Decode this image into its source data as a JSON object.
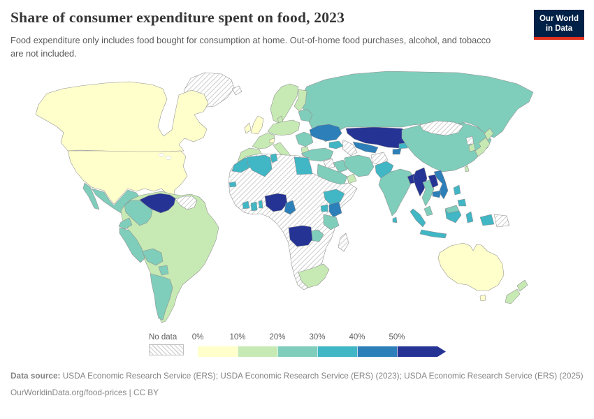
{
  "header": {
    "title": "Share of consumer expenditure spent on food, 2023",
    "subtitle": "Food expenditure only includes food bought for consumption at home. Out-of-home food purchases, alcohol, and tobacco are not included.",
    "logo": {
      "line1": "Our World",
      "line2": "in Data",
      "bg_color": "#002147",
      "accent_color": "#e0301e"
    }
  },
  "legend": {
    "no_data_label": "No data",
    "tick_labels": [
      "0%",
      "10%",
      "20%",
      "30%",
      "40%",
      "50%"
    ]
  },
  "chart_data": {
    "type": "choropleth_map",
    "title": "Share of consumer expenditure spent on food, 2023",
    "unit": "% of consumer expenditure",
    "year": "2023",
    "legend_position": "bottom",
    "no_data": {
      "label": "No data",
      "style": "diagonal-hatch"
    },
    "legend_bins": [
      {
        "label": "0%",
        "range": "0-10%",
        "color": "#ffffcc"
      },
      {
        "label": "10%",
        "range": "10-20%",
        "color": "#c7e9b4"
      },
      {
        "label": "20%",
        "range": "20-30%",
        "color": "#7fcdbb"
      },
      {
        "label": "30%",
        "range": "30-40%",
        "color": "#41b6c4"
      },
      {
        "label": "40%",
        "range": "40-50%",
        "color": "#2c7fb8"
      },
      {
        "label": "50%",
        "range": "50%+",
        "color": "#253494"
      }
    ],
    "regions": {
      "greenland": "no-data",
      "iceland": "no-data",
      "canada": "0-10%",
      "united-states": "0-10%",
      "mexico": "20-30%",
      "guatemala": "40-50%",
      "honduras": "30-40%",
      "nicaragua": "30-40%",
      "costa-rica-panama": "10-20%",
      "cuba": "no-data",
      "hispaniola": "30-40%",
      "venezuela": "50%+",
      "colombia": "20-30%",
      "guyanas": "no-data",
      "brazil": "10-20%",
      "ecuador": "20-30%",
      "peru": "20-30%",
      "bolivia": "20-30%",
      "paraguay": "20-30%",
      "argentina": "20-30%",
      "russia": "20-30%",
      "scandinavia": "10-20%",
      "finland": "10-20%",
      "denmark": "10-20%",
      "iberia": "10-20%",
      "france": "10-20%",
      "central-europe": "10-20%",
      "uk": "0-10%",
      "ireland": "0-10%",
      "balkans": "20-30%",
      "italy": "10-20%",
      "greece": "10-20%",
      "switzerland": "0-10%",
      "baltics-belarus": "20-30%",
      "ukraine": "40-50%",
      "kazakhstan": "50%+",
      "uzbekistan": "40-50%",
      "turkmenistan": "no-data",
      "kyrgyzstan": "30-40%",
      "tajikistan": "40-50%",
      "caucasus": "30-40%",
      "china": "20-30%",
      "mongolia": "no-data",
      "turkey": "20-30%",
      "syria": "no-data",
      "iraq": "20-30%",
      "iran": "20-30%",
      "afghanistan": "no-data",
      "pakistan": "30-40%",
      "saudi-arabia": "20-30%",
      "yemen": "20-30%",
      "oman": "10-20%",
      "india": "20-30%",
      "sri-lanka": "30-40%",
      "bangladesh": "50%+",
      "myanmar": "50%+",
      "thailand": "20-30%",
      "laos": "50%+",
      "vietnam": "40-50%",
      "cambodia": "40-50%",
      "malaysia": "20-30%",
      "indonesia": "30-40%",
      "papua-new-guinea": "no-data",
      "philippines": "30-40%",
      "japan": "10-20%",
      "south-korea": "10-20%",
      "north-korea": "no-data",
      "taiwan": "10-20%",
      "africa-interior": "no-data",
      "morocco": "30-40%",
      "algeria": "30-40%",
      "tunisia": "30-40%",
      "egypt": "30-40%",
      "senegal": "30-40%",
      "cote-divoire": "30-40%",
      "ghana": "30-40%",
      "benin": "30-40%",
      "nigeria": "50%+",
      "cameroon": "40-50%",
      "ethiopia": "30-40%",
      "uganda": "30-40%",
      "kenya": "40-50%",
      "tanzania": "20-30%",
      "zambia": "20-30%",
      "angola": "50%+",
      "south-africa": "10-20%",
      "madagascar": "no-data",
      "australia": "0-10%",
      "tasmania": "0-10%",
      "new-zealand": "10-20%"
    }
  },
  "footer": {
    "datasource_label": "Data source:",
    "datasource_text": " USDA Economic Research Service (ERS); USDA Economic Research Service (ERS) (2023); USDA Economic Research Service (ERS) (2025)",
    "license_line": "OurWorldinData.org/food-prices | CC BY"
  }
}
